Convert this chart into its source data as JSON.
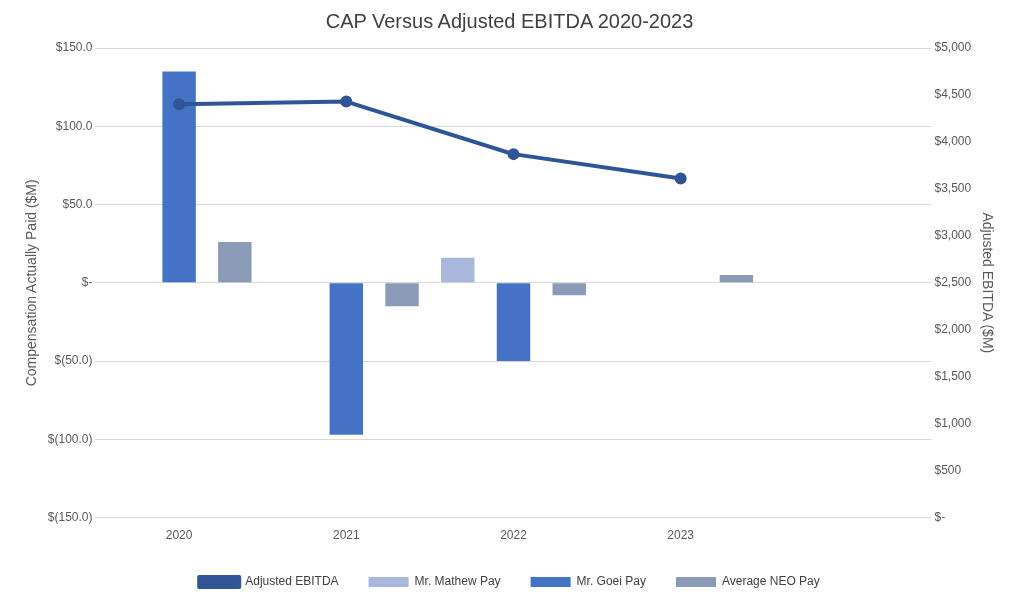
{
  "chart_data": {
    "type": "bar",
    "title": "CAP Versus Adjusted EBITDA 2020-2023",
    "ylabel": "Compensation Actually Paid ($M)",
    "y2label": "Adjusted EBITDA ($M)",
    "categories": [
      "2020",
      "2021",
      "2022",
      "2023",
      null
    ],
    "series": [
      {
        "name": "Mr. Mathew Pay",
        "color": "#a9b7dc",
        "values": [
          null,
          null,
          16,
          null,
          null
        ]
      },
      {
        "name": "Mr. Goei Pay",
        "color": "#4472c4",
        "values": [
          135,
          -97,
          -50,
          null,
          null
        ]
      },
      {
        "name": "Average NEO Pay",
        "color": "#8a9bb8",
        "values": [
          26,
          -15,
          -8,
          5,
          null
        ]
      },
      {
        "name": "Adjusted EBITDA",
        "type": "line",
        "axis": "y2",
        "color": "#2f5597",
        "values": [
          4400,
          4430,
          3870,
          3610,
          null
        ]
      }
    ],
    "ylim": [
      -150,
      150
    ],
    "yticks": [
      {
        "value": -150,
        "label": "$(150.0)"
      },
      {
        "value": -100,
        "label": "$(100.0)"
      },
      {
        "value": -50,
        "label": "$(50.0)"
      },
      {
        "value": 0,
        "label": "$-"
      },
      {
        "value": 50,
        "label": "$50.0"
      },
      {
        "value": 100,
        "label": "$100.0"
      },
      {
        "value": 150,
        "label": "$150.0"
      }
    ],
    "y2lim": [
      0,
      5000
    ],
    "y2ticks": [
      {
        "value": 0,
        "label": "$-"
      },
      {
        "value": 500,
        "label": "$500"
      },
      {
        "value": 1000,
        "label": "$1,000"
      },
      {
        "value": 1500,
        "label": "$1,500"
      },
      {
        "value": 2000,
        "label": "$2,000"
      },
      {
        "value": 2500,
        "label": "$2,500"
      },
      {
        "value": 3000,
        "label": "$3,000"
      },
      {
        "value": 3500,
        "label": "$3,500"
      },
      {
        "value": 4000,
        "label": "$4,000"
      },
      {
        "value": 4500,
        "label": "$4,500"
      },
      {
        "value": 5000,
        "label": "$5,000"
      }
    ],
    "grid": "y",
    "legend": "bottom",
    "marker": "circle",
    "line_style": "solid"
  }
}
